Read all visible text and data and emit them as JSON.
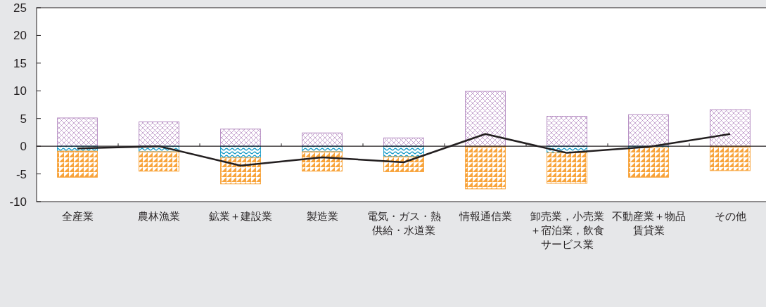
{
  "chart_data": {
    "type": "bar",
    "stacked": true,
    "categories": [
      "全産業",
      "農林漁業",
      "鉱業＋建設業",
      "製造業",
      "電気・ガス・熱供給・水道業",
      "情報通信業",
      "卸売業，小売業＋宿泊業，飲食サービス業",
      "不動産業＋物品賃貸業",
      "その他"
    ],
    "series": [
      {
        "color": "#b58cc2",
        "values": [
          5.1,
          4.4,
          3.1,
          2.4,
          1.5,
          9.9,
          5.4,
          5.7,
          6.6
        ]
      },
      {
        "color": "#1a9cc8",
        "values": [
          -0.9,
          -1.0,
          -2.1,
          -1.0,
          -1.9,
          0,
          -1.2,
          -0.3,
          0
        ]
      },
      {
        "color": "#f8a43c",
        "values": [
          -4.7,
          -3.5,
          -4.7,
          -3.5,
          -2.7,
          -7.7,
          -5.5,
          -5.3,
          -4.4
        ]
      },
      {
        "type": "line",
        "color": "#231f20",
        "values": [
          -0.4,
          0,
          -3.5,
          -2.0,
          -2.9,
          2.2,
          -1.2,
          -0.1,
          2.2
        ]
      }
    ],
    "ylim": [
      -10,
      25
    ],
    "yticks": [
      -10,
      -5,
      0,
      5,
      10,
      15,
      20,
      25
    ]
  }
}
